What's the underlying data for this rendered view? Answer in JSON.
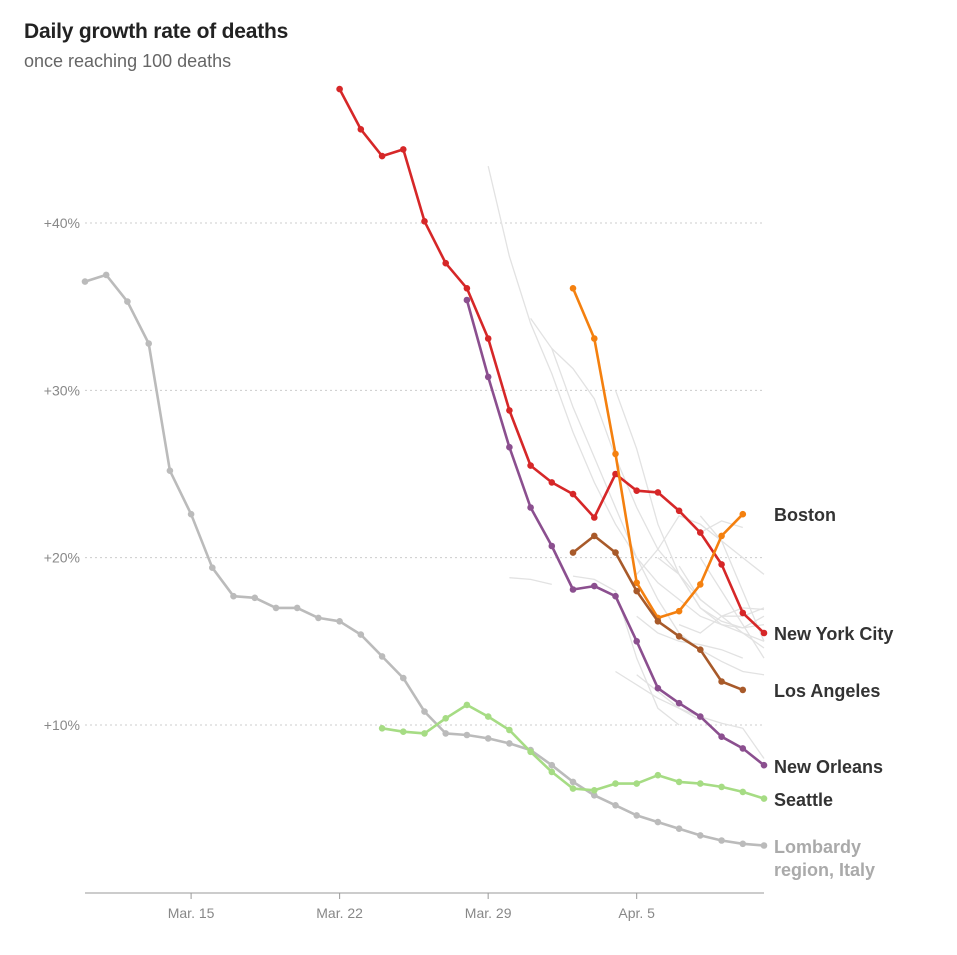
{
  "header": {
    "title": "Daily growth rate of deaths",
    "subtitle": "once reaching 100 deaths"
  },
  "chart_data": {
    "type": "line",
    "title": "Daily growth rate of deaths",
    "subtitle": "once reaching 100 deaths",
    "xlabel": "",
    "ylabel": "",
    "y_unit": "percent",
    "ylim": [
      0,
      50
    ],
    "y_ticks": [
      {
        "value": 10,
        "label": "+10%"
      },
      {
        "value": 20,
        "label": "+20%"
      },
      {
        "value": 30,
        "label": "+30%"
      },
      {
        "value": 40,
        "label": "+40%"
      }
    ],
    "x_ticks": [
      {
        "date": "2020-03-15",
        "label": "Mar. 15"
      },
      {
        "date": "2020-03-22",
        "label": "Mar. 22"
      },
      {
        "date": "2020-03-29",
        "label": "Mar. 29"
      },
      {
        "date": "2020-04-05",
        "label": "Apr. 5"
      }
    ],
    "xlim": [
      "2020-03-10",
      "2020-04-11"
    ],
    "grid": true,
    "legend": "direct labels at right end of lines",
    "series": [
      {
        "name": "Lombardy region, Italy",
        "label_lines": [
          "Lombardy",
          "region, Italy"
        ],
        "color": "#bbbbbb",
        "label_color": "#aaaaaa",
        "start": "2020-03-10",
        "values": [
          36.5,
          36.9,
          35.3,
          32.8,
          25.2,
          22.6,
          19.4,
          17.7,
          17.6,
          17.0,
          17.0,
          16.4,
          16.2,
          15.4,
          14.1,
          12.8,
          10.8,
          9.5,
          9.4,
          9.2,
          8.9,
          8.5,
          7.6,
          6.6,
          5.8,
          5.2,
          4.6,
          4.2,
          3.8,
          3.4,
          3.1,
          2.9,
          2.8
        ]
      },
      {
        "name": "New York City",
        "label_lines": [
          "New York City"
        ],
        "color": "#d62728",
        "label_color": "#333333",
        "start": "2020-03-22",
        "values": [
          48.0,
          45.6,
          44.0,
          44.4,
          40.1,
          37.6,
          36.1,
          33.1,
          28.8,
          25.5,
          24.5,
          23.8,
          22.4,
          25.0,
          24.0,
          23.9,
          22.8,
          21.5,
          19.6,
          16.7,
          15.5
        ]
      },
      {
        "name": "New Orleans",
        "label_lines": [
          "New Orleans"
        ],
        "color": "#8b4f8f",
        "label_color": "#333333",
        "start": "2020-03-28",
        "values": [
          35.4,
          30.8,
          26.6,
          23.0,
          20.7,
          18.1,
          18.3,
          17.7,
          15.0,
          12.2,
          11.3,
          10.5,
          9.3,
          8.6,
          7.6
        ]
      },
      {
        "name": "Boston",
        "label_lines": [
          "Boston"
        ],
        "color": "#f4800f",
        "label_color": "#333333",
        "start": "2020-04-02",
        "values": [
          36.1,
          33.1,
          26.2,
          18.5,
          16.4,
          16.8,
          18.4,
          21.3,
          22.6
        ]
      },
      {
        "name": "Los Angeles",
        "label_lines": [
          "Los Angeles"
        ],
        "color": "#a85a2a",
        "label_color": "#333333",
        "start": "2020-04-02",
        "values": [
          20.3,
          21.3,
          20.3,
          18.0,
          16.2,
          15.3,
          14.5,
          12.6,
          12.1
        ]
      },
      {
        "name": "Seattle",
        "label_lines": [
          "Seattle"
        ],
        "color": "#a6dc84",
        "label_color": "#333333",
        "start": "2020-03-24",
        "values": [
          9.8,
          9.6,
          9.5,
          10.4,
          11.2,
          10.5,
          9.7,
          8.4,
          7.2,
          6.2,
          6.1,
          6.5,
          6.5,
          7.0,
          6.6,
          6.5,
          6.3,
          6.0,
          5.6
        ]
      }
    ],
    "background_series": [
      {
        "start": "2020-03-29",
        "values": [
          43.4,
          38.0,
          34.0,
          31.0,
          27.5,
          24.5,
          22.0,
          20.0,
          18.5,
          17.5,
          16.5,
          16.0,
          15.5,
          15.0
        ]
      },
      {
        "start": "2020-03-31",
        "values": [
          34.3,
          32.5,
          31.3,
          29.5,
          26.0,
          23.0,
          20.5,
          19.0,
          17.5,
          16.5,
          15.5,
          14.6
        ]
      },
      {
        "start": "2020-04-01",
        "values": [
          32.5,
          29.0,
          26.0,
          23.0,
          20.0,
          17.5,
          15.5,
          14.5,
          13.8,
          13.2,
          13.0
        ]
      },
      {
        "start": "2020-04-04",
        "values": [
          30.0,
          26.5,
          22.0,
          19.0,
          17.0,
          16.2,
          15.8,
          16.5
        ]
      },
      {
        "start": "2020-04-05",
        "values": [
          19.0,
          20.5,
          22.5,
          22.0,
          21.0,
          20.0,
          19.0
        ]
      },
      {
        "start": "2020-04-06",
        "values": [
          20.0,
          19.0,
          17.0,
          16.0,
          15.8,
          16.0
        ]
      },
      {
        "start": "2020-04-07",
        "values": [
          19.5,
          17.5,
          16.5,
          16.5,
          17.0
        ]
      },
      {
        "start": "2020-04-07",
        "values": [
          16.0,
          15.5,
          16.5,
          17.0,
          16.9
        ]
      },
      {
        "start": "2020-04-05",
        "values": [
          16.5,
          15.5,
          15.0,
          14.8,
          14.5,
          14.0
        ]
      },
      {
        "start": "2020-04-08",
        "values": [
          22.5,
          21.0,
          18.0,
          15.0
        ]
      },
      {
        "start": "2020-04-08",
        "values": [
          20.0,
          18.0,
          16.0,
          14.0
        ]
      },
      {
        "start": "2020-04-04",
        "values": [
          13.2,
          12.4,
          11.6,
          11.0,
          10.5,
          10.1,
          9.8,
          8.0
        ]
      },
      {
        "start": "2020-04-02",
        "values": [
          18.9,
          18.7,
          18.0,
          14.0,
          11.0,
          10.0
        ]
      },
      {
        "start": "2020-04-05",
        "values": [
          13.0,
          12.0,
          11.0,
          10.3
        ]
      },
      {
        "start": "2020-03-30",
        "values": [
          18.8,
          18.7,
          18.4
        ]
      },
      {
        "start": "2020-04-08",
        "values": [
          21.5,
          22.2,
          21.8
        ]
      }
    ]
  }
}
